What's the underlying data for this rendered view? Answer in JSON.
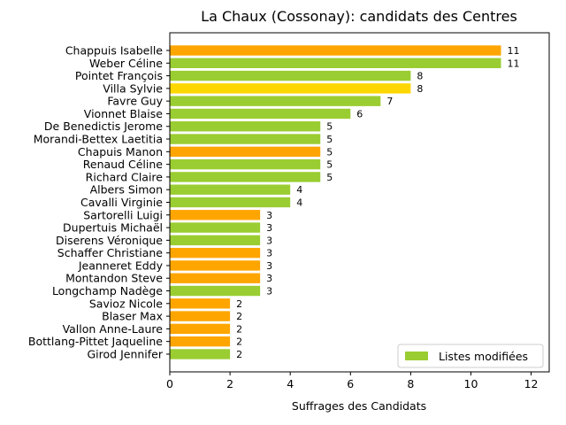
{
  "chart_data": {
    "type": "bar",
    "orientation": "horizontal",
    "title": "La Chaux (Cossonay): candidats des Centres",
    "xlabel": "Suffrages des Candidats",
    "ylabel": "",
    "xlim": [
      0,
      12.6
    ],
    "x_ticks": [
      "0",
      "2",
      "4",
      "6",
      "8",
      "10",
      "12"
    ],
    "grid": false,
    "legend_position": "lower-right",
    "legend": [
      {
        "label": "Listes modifiées",
        "color": "#9acd32"
      }
    ],
    "categories": [
      "Chappuis Isabelle",
      "Weber Céline",
      "Pointet François",
      "Villa Sylvie",
      "Favre Guy",
      "Vionnet Blaise",
      "De Benedictis Jerome",
      "Morandi-Bettex Laetitia",
      "Chapuis Manon",
      "Renaud Céline",
      "Richard Claire",
      "Albers Simon",
      "Cavalli Virginie",
      "Sartorelli Luigi",
      "Dupertuis Michaël",
      "Diserens Véronique",
      "Schaffer Christiane",
      "Jeanneret Eddy",
      "Montandon Steve",
      "Longchamp Nadège",
      "Savioz Nicole",
      "Blaser Max",
      "Vallon Anne-Laure",
      "Bottlang-Pittet Jaqueline",
      "Girod Jennifer"
    ],
    "values": [
      11,
      11,
      8,
      8,
      7,
      6,
      5,
      5,
      5,
      5,
      5,
      4,
      4,
      3,
      3,
      3,
      3,
      3,
      3,
      3,
      2,
      2,
      2,
      2,
      2
    ],
    "bar_colors": [
      "#ffa500",
      "#9acd32",
      "#9acd32",
      "#ffd700",
      "#9acd32",
      "#9acd32",
      "#9acd32",
      "#9acd32",
      "#ffa500",
      "#9acd32",
      "#9acd32",
      "#9acd32",
      "#9acd32",
      "#ffa500",
      "#9acd32",
      "#9acd32",
      "#ffa500",
      "#ffa500",
      "#ffa500",
      "#9acd32",
      "#ffa500",
      "#ffa500",
      "#ffa500",
      "#ffa500",
      "#9acd32"
    ]
  }
}
